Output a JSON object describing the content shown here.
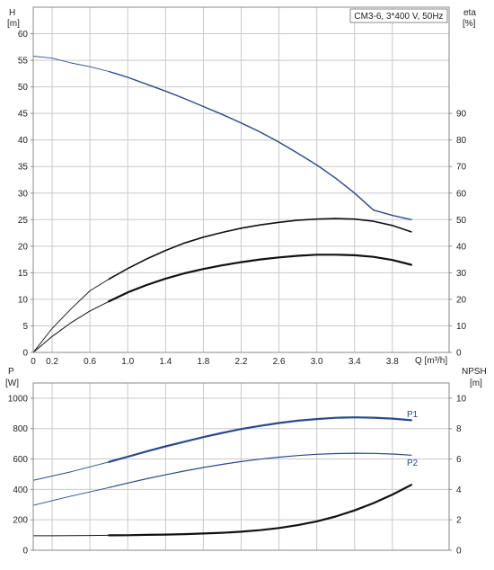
{
  "chart_data": [
    {
      "type": "line",
      "model_label": "CM3-6, 3*400 V, 50Hz",
      "y_left_label": [
        "H",
        "[m]"
      ],
      "y_right_label": [
        "eta",
        "[%]"
      ],
      "x_label": "Q [m³/h]",
      "xlim": [
        0,
        4.4
      ],
      "x_ticks": [
        "0",
        "0.2",
        "0.6",
        "1.0",
        "1.4",
        "1.8",
        "2.2",
        "2.6",
        "3.0",
        "3.4",
        "3.8"
      ],
      "x_tick_values": [
        0,
        0.2,
        0.6,
        1.0,
        1.4,
        1.8,
        2.2,
        2.6,
        3.0,
        3.4,
        3.8
      ],
      "ylim_left": [
        0,
        65
      ],
      "y_left_ticks": [
        "0",
        "5",
        "10",
        "15",
        "20",
        "25",
        "30",
        "35",
        "40",
        "45",
        "50",
        "55",
        "60"
      ],
      "y_left_tick_values": [
        0,
        5,
        10,
        15,
        20,
        25,
        30,
        35,
        40,
        45,
        50,
        55,
        60
      ],
      "ylim_right": [
        0,
        130
      ],
      "y_right_ticks": [
        "0",
        "10",
        "20",
        "30",
        "40",
        "50",
        "60",
        "70",
        "80",
        "90"
      ],
      "y_right_tick_values": [
        0,
        10,
        20,
        30,
        40,
        50,
        60,
        70,
        80,
        90
      ],
      "grid": true,
      "series": [
        {
          "color": "#2a4a8a",
          "axis": "left",
          "x": [
            0,
            0.2,
            0.4,
            0.6,
            0.8,
            1.0,
            1.2,
            1.4,
            1.6,
            1.8,
            2.0,
            2.2,
            2.4,
            2.6,
            2.8,
            3.0,
            3.2,
            3.4,
            3.6,
            3.8,
            4.0
          ],
          "y": [
            55.8,
            55.4,
            54.5,
            53.8,
            52.9,
            51.8,
            50.5,
            49.2,
            47.8,
            46.3,
            44.8,
            43.2,
            41.5,
            39.6,
            37.5,
            35.3,
            32.8,
            30.0,
            26.8,
            25.8,
            25.0
          ]
        },
        {
          "color": "#111111",
          "axis": "left",
          "x": [
            0,
            0.2,
            0.4,
            0.6,
            0.8,
            1.0,
            1.2,
            1.4,
            1.6,
            1.8,
            2.0,
            2.2,
            2.4,
            2.6,
            2.8,
            3.0,
            3.2,
            3.4,
            3.6,
            3.8,
            4.0
          ],
          "y": [
            0.0,
            4.5,
            8.2,
            11.6,
            13.8,
            15.8,
            17.6,
            19.2,
            20.6,
            21.7,
            22.6,
            23.4,
            24.0,
            24.5,
            24.9,
            25.1,
            25.2,
            25.1,
            24.7,
            23.9,
            22.7
          ]
        },
        {
          "color": "#111111",
          "axis": "left",
          "x": [
            0,
            0.2,
            0.4,
            0.6,
            0.8,
            1.0,
            1.2,
            1.4,
            1.6,
            1.8,
            2.0,
            2.2,
            2.4,
            2.6,
            2.8,
            3.0,
            3.2,
            3.4,
            3.6,
            3.8,
            4.0
          ],
          "y": [
            0.0,
            3.0,
            5.6,
            7.8,
            9.6,
            11.3,
            12.7,
            13.9,
            14.9,
            15.7,
            16.4,
            17.0,
            17.5,
            17.9,
            18.2,
            18.4,
            18.4,
            18.3,
            18.0,
            17.4,
            16.5
          ]
        }
      ]
    },
    {
      "type": "line",
      "y_left_label": [
        "P",
        "[W]"
      ],
      "y_right_label": [
        "NPSH",
        "[m]"
      ],
      "xlim": [
        0,
        4.4
      ],
      "ylim_left": [
        0,
        1100
      ],
      "y_left_ticks": [
        "0",
        "200",
        "400",
        "600",
        "800",
        "1000"
      ],
      "y_left_tick_values": [
        0,
        200,
        400,
        600,
        800,
        1000
      ],
      "ylim_right": [
        0,
        11
      ],
      "y_right_ticks": [
        "0",
        "2",
        "4",
        "6",
        "8",
        "10"
      ],
      "y_right_tick_values": [
        0,
        2,
        4,
        6,
        8,
        10
      ],
      "grid": true,
      "series": [
        {
          "name": "P1",
          "color": "#2a4a8a",
          "axis": "left",
          "x": [
            0,
            0.2,
            0.4,
            0.6,
            0.8,
            1.0,
            1.2,
            1.4,
            1.6,
            1.8,
            2.0,
            2.2,
            2.4,
            2.6,
            2.8,
            3.0,
            3.2,
            3.4,
            3.6,
            3.8,
            4.0
          ],
          "y": [
            460,
            488,
            516,
            548,
            581,
            615,
            650,
            683,
            714,
            744,
            772,
            797,
            818,
            837,
            852,
            863,
            871,
            874,
            872,
            866,
            855
          ]
        },
        {
          "name": "P2",
          "color": "#2a4a8a",
          "axis": "left",
          "x": [
            0,
            0.2,
            0.4,
            0.6,
            0.8,
            1.0,
            1.2,
            1.4,
            1.6,
            1.8,
            2.0,
            2.2,
            2.4,
            2.6,
            2.8,
            3.0,
            3.2,
            3.4,
            3.6,
            3.8,
            4.0
          ],
          "y": [
            295,
            326,
            356,
            383,
            412,
            442,
            470,
            496,
            521,
            544,
            565,
            583,
            599,
            612,
            623,
            631,
            636,
            638,
            637,
            633,
            625
          ]
        },
        {
          "color": "#111111",
          "axis": "right",
          "x": [
            0,
            0.2,
            0.4,
            0.6,
            0.8,
            1.0,
            1.2,
            1.4,
            1.6,
            1.8,
            2.0,
            2.2,
            2.4,
            2.6,
            2.8,
            3.0,
            3.2,
            3.4,
            3.6,
            3.8,
            4.0
          ],
          "y": [
            0.95,
            0.95,
            0.96,
            0.97,
            0.98,
            0.99,
            1.01,
            1.03,
            1.06,
            1.1,
            1.15,
            1.22,
            1.32,
            1.46,
            1.65,
            1.9,
            2.22,
            2.62,
            3.1,
            3.66,
            4.3
          ]
        }
      ]
    }
  ]
}
